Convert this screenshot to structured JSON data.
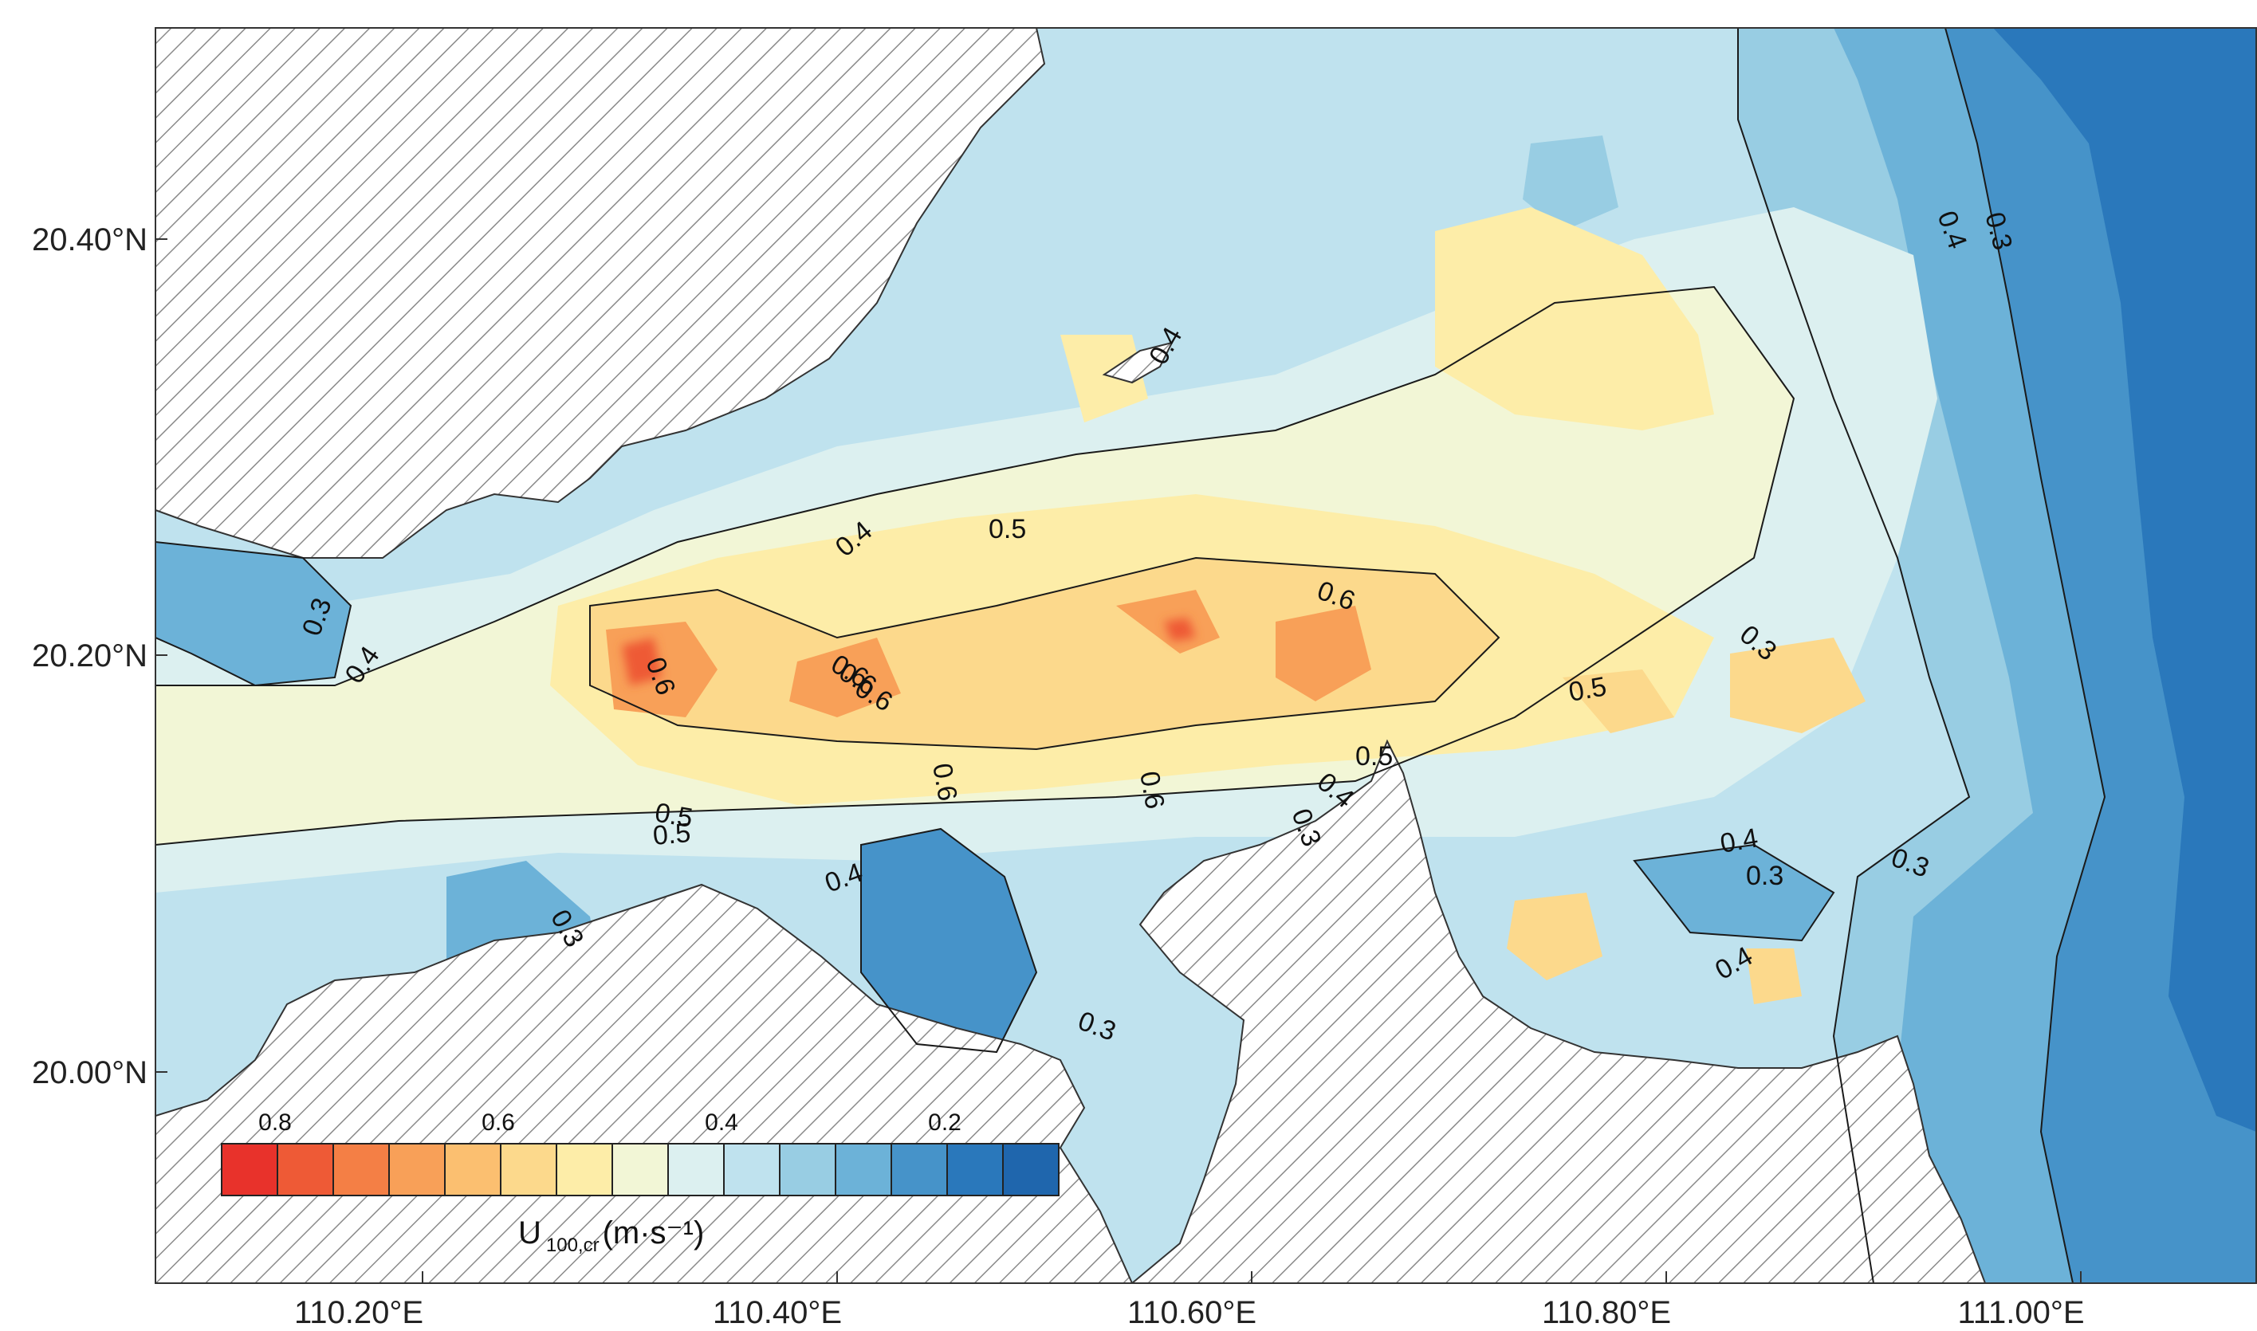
{
  "map": {
    "y_ticks": [
      "20.40°N",
      "20.20°N",
      "20.00°N"
    ],
    "x_ticks": [
      "110.20°E",
      "110.40°E",
      "110.60°E",
      "110.80°E",
      "111.00°E"
    ],
    "contour_labels": [
      "0.3",
      "0.4",
      "0.5",
      "0.6",
      "0.3",
      "0.4",
      "0.6",
      "0.4",
      "0.4",
      "0.3",
      "0.5",
      "0.5",
      "0.6",
      "0.6",
      "0.6",
      "0.6",
      "0.6",
      "0.4",
      "0.3",
      "0.5",
      "0.5",
      "0.3",
      "0.4",
      "0.3",
      "0.3",
      "0.4",
      "0.4",
      "0.3"
    ],
    "land_pattern": "diagonal hatching"
  },
  "colorbar": {
    "tick_labels": [
      "0.8",
      "0.6",
      "0.4",
      "0.2"
    ],
    "title_main": "U",
    "title_sub": "100,cr",
    "title_unit": "(m·s⁻¹)",
    "colors": [
      "#e8322b",
      "#ee5a36",
      "#f47f45",
      "#f8a058",
      "#fbbf70",
      "#fcd98c",
      "#fdeda8",
      "#f2f6d6",
      "#dcf0f0",
      "#bfe2ee",
      "#98cde3",
      "#6cb2d8",
      "#4693c9",
      "#2a78bb",
      "#1f66ad"
    ]
  }
}
